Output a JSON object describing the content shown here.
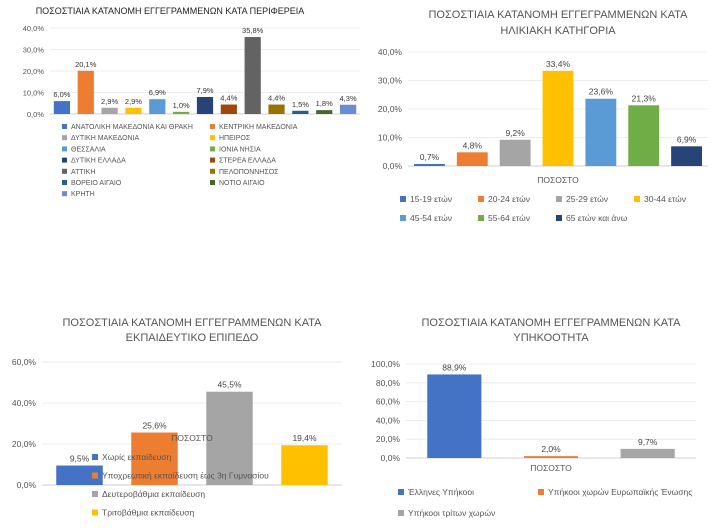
{
  "chart_data": [
    {
      "type": "bar",
      "title": "ΠΟΣΟΣΤΙΑΙΑ ΚΑΤΑΝΟΜΗ ΕΓΓΕΓΡΑΜΜΕΝΩΝ ΚΑΤΑ ΠΕΡΙΦΕΡΕΙΑ",
      "ylim": [
        0,
        40
      ],
      "yticks": [
        "40,0%",
        "30,0%",
        "20,0%",
        "10,0%",
        "0,0%"
      ],
      "legend_position": "bottom",
      "categories": [
        "ΑΝΑΤΟΛΙΚΗ ΜΑΚΕΔΟΝΙΑ ΚΑΙ ΘΡΑΚΗ",
        "ΚΕΝΤΡΙΚΗ ΜΑΚΕΔΟΝΙΑ",
        "ΔΥΤΙΚΗ ΜΑΚΕΔΟΝΙΑ",
        "ΗΠΕΙΡΟΣ",
        "ΘΕΣΣΑΛΙΑ",
        "ΙΟΝΙΑ ΝΗΣΙΑ",
        "ΔΥΤΙΚΗ ΕΛΛΑΔΑ",
        "ΣΤΕΡΕΑ ΕΛΛΑΔΑ",
        "ΑΤΤΙΚΗ",
        "ΠΕΛΟΠΟΝΝΗΣΟΣ",
        "ΒΟΡΕΙΟ ΑΙΓΑΙΟ",
        "ΝΟΤΙΟ ΑΙΓΑΙΟ",
        "ΚΡΗΤΗ"
      ],
      "values": [
        6.0,
        20.1,
        2.9,
        2.9,
        6.9,
        1.0,
        7.9,
        4.4,
        35.8,
        4.4,
        1.5,
        1.8,
        4.3
      ],
      "value_labels": [
        "6,0%",
        "20,1%",
        "2,9%",
        "2,9%",
        "6,9%",
        "1,0%",
        "7,9%",
        "4,4%",
        "35,8%",
        "4,4%",
        "1,5%",
        "1,8%",
        "4,3%"
      ],
      "colors": [
        "#4472C4",
        "#ED7D31",
        "#A5A5A5",
        "#FFC000",
        "#5B9BD5",
        "#70AD47",
        "#264478",
        "#9E480E",
        "#636363",
        "#997300",
        "#255E91",
        "#43682B",
        "#698ED0"
      ]
    },
    {
      "type": "bar",
      "title": [
        "ΠΟΣΟΣΤΙΑΙΑ ΚΑΤΑΝΟΜΗ ΕΓΓΕΓΡΑΜΜΕΝΩΝ ΚΑΤΑ",
        "ΗΛΙΚΙΑΚΗ ΚΑΤΗΓΟΡΙΑ"
      ],
      "xlabel": "ΠΟΣΟΣΤΟ",
      "ylim": [
        0,
        40
      ],
      "yticks": [
        "40,0%",
        "30,0%",
        "20,0%",
        "10,0%",
        "0,0%"
      ],
      "legend_position": "bottom",
      "categories": [
        "15-19 ετών",
        "20-24 ετών",
        "25-29 ετών",
        "30-44 ετών",
        "45-54 ετών",
        "55-64 ετών",
        "65 ετών και άνω"
      ],
      "values": [
        0.7,
        4.8,
        9.2,
        33.4,
        23.6,
        21.3,
        6.9
      ],
      "value_labels": [
        "0,7%",
        "4,8%",
        "9,2%",
        "33,4%",
        "23,6%",
        "21,3%",
        "6,9%"
      ],
      "colors": [
        "#4472C4",
        "#ED7D31",
        "#A5A5A5",
        "#FFC000",
        "#5B9BD5",
        "#70AD47",
        "#264478"
      ]
    },
    {
      "type": "bar",
      "title": [
        "ΠΟΣΟΣΤΙΑΙΑ ΚΑΤΑΝΟΜΗ ΕΓΓΕΓΡΑΜΜΕΝΩΝ ΚΑΤΑ",
        "ΕΚΠΑΙΔΕΥΤΙΚΟ ΕΠΙΠΕΔΟ"
      ],
      "xlabel": "ΠΟΣΟΣΤΟ",
      "ylim": [
        0,
        60
      ],
      "yticks": [
        "60,0%",
        "40,0%",
        "20,0%",
        "0,0%"
      ],
      "legend_position": "bottom",
      "categories": [
        "Χωρίς εκπαίδευση",
        "Υποχρεωτική εκπαίδευση έως 3η Γυμνασίου",
        "Δευτεροβάθμια εκπαίδευση",
        "Τριτοβάθμια εκπαίδευση"
      ],
      "values": [
        9.5,
        25.6,
        45.5,
        19.4
      ],
      "value_labels": [
        "9,5%",
        "25,6%",
        "45,5%",
        "19,4%"
      ],
      "colors": [
        "#4472C4",
        "#ED7D31",
        "#A5A5A5",
        "#FFC000"
      ]
    },
    {
      "type": "bar",
      "title": [
        "ΠΟΣΟΣΤΙΑΙΑ ΚΑΤΑΝΟΜΗ ΕΓΓΕΓΡΑΜΜΕΝΩΝ ΚΑΤΑ",
        "ΥΠΗΚΟΟΤΗΤΑ"
      ],
      "xlabel": "ΠΟΣΟΣΤΟ",
      "ylim": [
        0,
        100
      ],
      "yticks": [
        "100,0%",
        "80,0%",
        "60,0%",
        "40,0%",
        "20,0%",
        "0,0%"
      ],
      "legend_position": "bottom",
      "categories": [
        "Έλληνες Υπήκοοι",
        "Υπήκοοι χωρών Ευρωπαϊκής Ένωσης",
        "Υπήκοοι τρίτων χωρών"
      ],
      "values": [
        88.9,
        2.0,
        9.7
      ],
      "value_labels": [
        "88,9%",
        "2,0%",
        "9,7%"
      ],
      "colors": [
        "#4472C4",
        "#ED7D31",
        "#A5A5A5"
      ]
    }
  ]
}
